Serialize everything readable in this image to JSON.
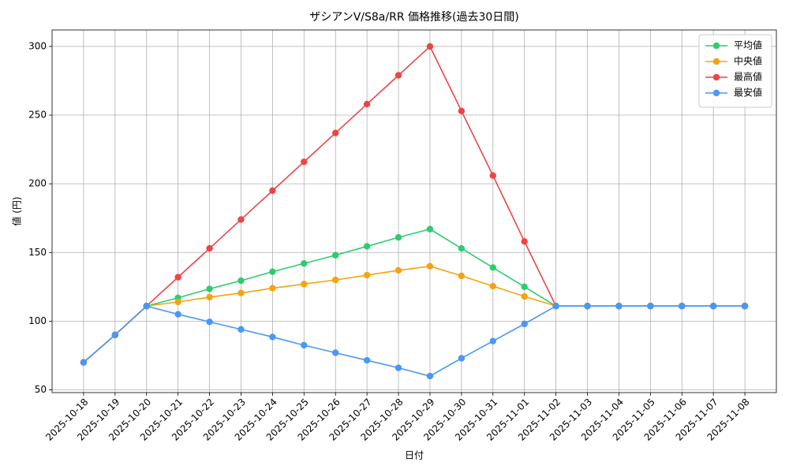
{
  "chart_data": {
    "type": "line",
    "title": "ザシアンV/S8a/RR 価格推移(過去30日間)",
    "x_label": "日付",
    "y_label": "値 (円)",
    "categories": [
      "2025-10-18",
      "2025-10-19",
      "2025-10-20",
      "2025-10-21",
      "2025-10-22",
      "2025-10-23",
      "2025-10-24",
      "2025-10-25",
      "2025-10-26",
      "2025-10-27",
      "2025-10-28",
      "2025-10-29",
      "2025-10-30",
      "2025-10-31",
      "2025-11-01",
      "2025-11-02",
      "2025-11-03",
      "2025-11-04",
      "2025-11-05",
      "2025-11-06",
      "2025-11-07",
      "2025-11-08"
    ],
    "series": [
      {
        "name": "平均値",
        "color": "#2ecc71",
        "values": [
          70,
          90,
          111,
          117,
          123.5,
          129.5,
          136,
          142,
          148,
          154.5,
          161,
          167,
          153,
          139,
          125,
          111,
          111,
          111,
          111,
          111,
          111,
          111
        ]
      },
      {
        "name": "中央値",
        "color": "#f5a30f",
        "values": [
          70,
          90,
          111,
          114,
          117.5,
          120.5,
          124,
          127,
          130,
          133.5,
          137,
          140,
          133,
          125.5,
          118,
          111,
          111,
          111,
          111,
          111,
          111,
          111
        ]
      },
      {
        "name": "最高値",
        "color": "#ef4444",
        "values": [
          70,
          90,
          111,
          132,
          153,
          174,
          195,
          216,
          237,
          258,
          279,
          300,
          253,
          206,
          158,
          111,
          111,
          111,
          111,
          111,
          111,
          111
        ]
      },
      {
        "name": "最安値",
        "color": "#4a97f5",
        "values": [
          70,
          90,
          111,
          105,
          99.5,
          94,
          88.5,
          82.5,
          77,
          71.5,
          66,
          60,
          73,
          85.5,
          98,
          111,
          111,
          111,
          111,
          111,
          111,
          111
        ]
      }
    ],
    "ylim": [
      48,
      312
    ],
    "yticks": [
      50,
      100,
      150,
      200,
      250,
      300
    ],
    "grid": true,
    "legend": "upper right"
  }
}
